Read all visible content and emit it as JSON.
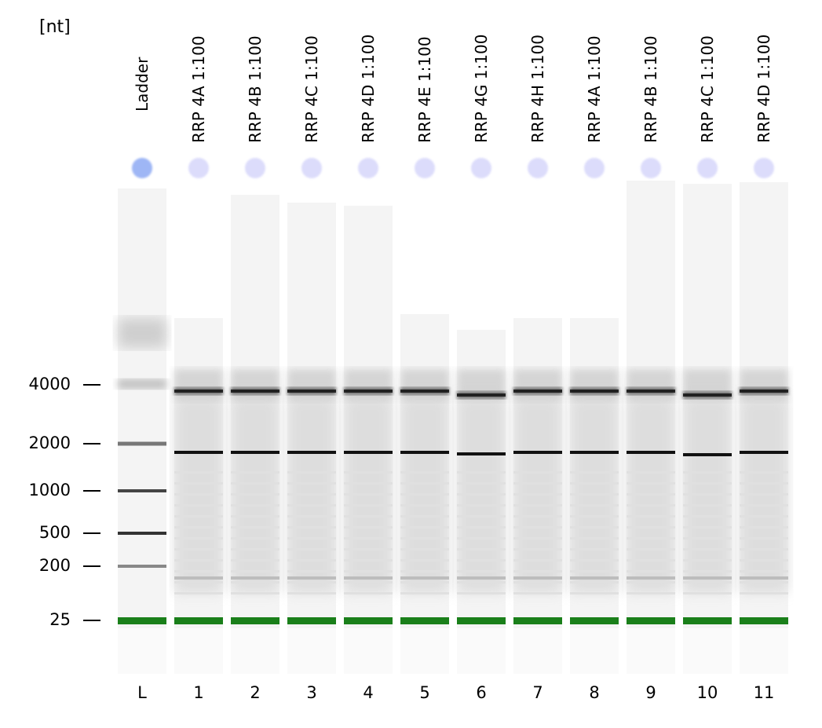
{
  "gel": {
    "unit_label": "[nt]",
    "lanes": [
      {
        "label": "Ladder",
        "number": "L"
      },
      {
        "label": "RRP 4A 1:100",
        "number": "1"
      },
      {
        "label": "RRP 4B 1:100",
        "number": "2"
      },
      {
        "label": "RRP 4C 1:100",
        "number": "3"
      },
      {
        "label": "RRP 4D 1:100",
        "number": "4"
      },
      {
        "label": "RRP 4E 1:100",
        "number": "5"
      },
      {
        "label": "RRP 4G 1:100",
        "number": "6"
      },
      {
        "label": "RRP 4H 1:100",
        "number": "7"
      },
      {
        "label": "RRP 4A 1:100",
        "number": "8"
      },
      {
        "label": "RRP 4B 1:100",
        "number": "9"
      },
      {
        "label": "RRP 4C 1:100",
        "number": "10"
      },
      {
        "label": "RRP 4D 1:100",
        "number": "11"
      }
    ],
    "size_markers": [
      "4000",
      "2000",
      "1000",
      "500",
      "200",
      "25"
    ],
    "colors": {
      "marker_band": "#1a7f1a",
      "ladder_dot": "#9eb6f5",
      "sample_dot": "#dcdcfb",
      "band": "#111111"
    }
  }
}
